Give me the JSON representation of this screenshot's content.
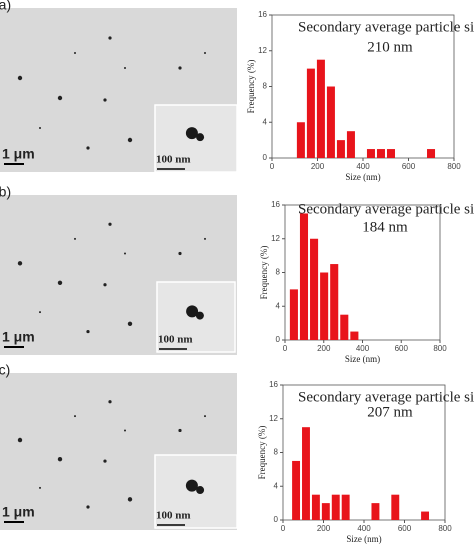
{
  "chart_data": [
    {
      "type": "histogram",
      "panel": "(a)",
      "title": "Secondary average particle size =",
      "subtitle": "210 nm",
      "scale_bar": "1 μm",
      "inset_scale_bar": "100 nm",
      "xlabel": "Size (nm)",
      "ylabel": "Frequency (%)",
      "bins": [
        105,
        149,
        193,
        237,
        281,
        325,
        369,
        413,
        457,
        501,
        545,
        589,
        633,
        677,
        721
      ],
      "values": [
        4,
        10,
        11,
        8,
        2,
        3,
        0,
        1,
        1,
        1,
        0,
        0,
        0,
        1
      ],
      "color": "#e8141b",
      "xlim": [
        0,
        800
      ],
      "xticks": [
        0,
        200,
        400,
        600,
        800
      ],
      "ylim": [
        0,
        16
      ],
      "yticks": [
        0,
        4,
        8,
        12,
        16
      ]
    },
    {
      "type": "histogram",
      "panel": "(b)",
      "title": "Secondary average particle size =",
      "subtitle": "184 nm",
      "scale_bar": "1 μm",
      "inset_scale_bar": "100 nm",
      "xlabel": "Size (nm)",
      "ylabel": "Frequency (%)",
      "bins": [
        20,
        72,
        124,
        176,
        228,
        280,
        332,
        384
      ],
      "values": [
        6,
        15,
        12,
        8,
        9,
        3,
        1
      ],
      "color": "#e8141b",
      "xlim": [
        0,
        800
      ],
      "xticks": [
        0,
        200,
        400,
        600,
        800
      ],
      "ylim": [
        0,
        16
      ],
      "yticks": [
        0,
        4,
        8,
        12,
        16
      ]
    },
    {
      "type": "histogram",
      "panel": "(c)",
      "title": "Secondary average particle size =",
      "subtitle": "207 nm",
      "scale_bar": "1 μm",
      "inset_scale_bar": "100 nm",
      "xlabel": "Size (nm)",
      "ylabel": "Frequency (%)",
      "bins": [
        40,
        89,
        138,
        187,
        236,
        285,
        334,
        383,
        432,
        481,
        530,
        579,
        628,
        677,
        726
      ],
      "values": [
        7,
        11,
        3,
        2,
        3,
        3,
        0,
        0,
        2,
        0,
        3,
        0,
        0,
        1
      ],
      "color": "#e8141b",
      "xlim": [
        0,
        800
      ],
      "xticks": [
        0,
        200,
        400,
        600,
        800
      ],
      "ylim": [
        0,
        16
      ],
      "yticks": [
        0,
        4,
        8,
        12,
        16
      ]
    }
  ]
}
